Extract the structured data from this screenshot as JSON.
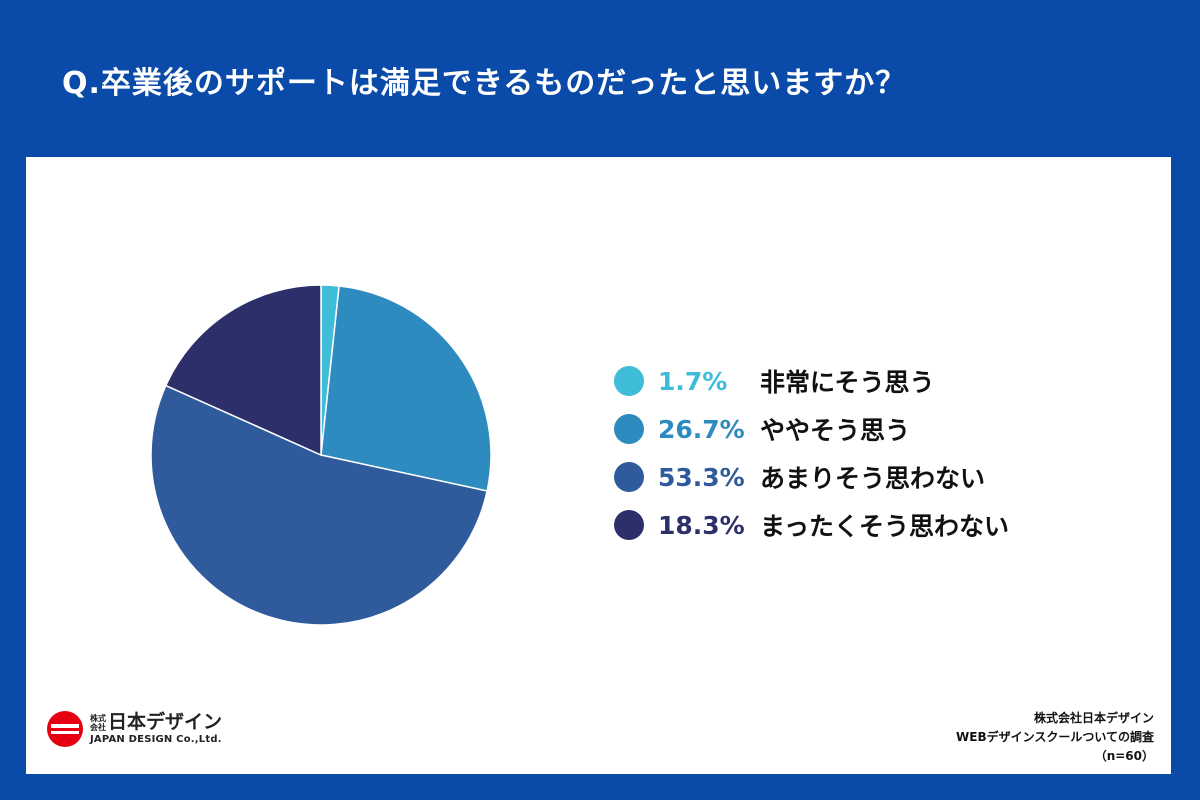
{
  "title": "Q.卒業後のサポートは満足できるものだったと思いますか？",
  "chart_data": {
    "type": "pie",
    "title": "Q.卒業後のサポートは満足できるものだったと思いますか？",
    "start_angle_deg": 0,
    "direction": "clockwise",
    "slices": [
      {
        "label": "非常にそう思う",
        "value": 1.7,
        "value_label": "1.7%",
        "color": "#3fbcd8"
      },
      {
        "label": "ややそう思う",
        "value": 26.7,
        "value_label": "26.7%",
        "color": "#2e8bc0"
      },
      {
        "label": "あまりそう思わない",
        "value": 53.3,
        "value_label": "53.3%",
        "color": "#2f5b9d"
      },
      {
        "label": "まったくそう思わない",
        "value": 18.3,
        "value_label": "18.3%",
        "color": "#2d2f6a"
      }
    ],
    "legend_position": "right"
  },
  "logo": {
    "kaisha": "株式会社",
    "name": "日本デザイン",
    "en": "JAPAN DESIGN Co.,Ltd.",
    "color": "#e60012"
  },
  "source": {
    "line1": "株式会社日本デザイン",
    "line2": "WEBデザインスクールついての調査",
    "line3": "（n=60）"
  }
}
